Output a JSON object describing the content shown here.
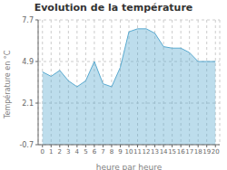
{
  "chart_data": {
    "type": "area",
    "title": "Evolution de la température",
    "xlabel": "heure par heure",
    "ylabel": "Température en °C",
    "x": [
      0,
      1,
      2,
      3,
      4,
      5,
      6,
      7,
      8,
      9,
      10,
      11,
      12,
      13,
      14,
      15,
      16,
      17,
      18,
      19,
      20
    ],
    "values": [
      4.2,
      3.9,
      4.3,
      3.6,
      3.2,
      3.6,
      4.9,
      3.4,
      3.2,
      4.5,
      6.9,
      7.1,
      7.1,
      6.8,
      5.9,
      5.8,
      5.8,
      5.5,
      4.9,
      4.9,
      4.9
    ],
    "color": "#5aaad0",
    "xlim": [
      -0.5,
      20.5
    ],
    "xticks": [
      0,
      1,
      2,
      3,
      4,
      5,
      6,
      7,
      8,
      9,
      10,
      11,
      12,
      13,
      14,
      15,
      16,
      17,
      18,
      19,
      20
    ],
    "ylim": [
      -0.7,
      7.7
    ],
    "yticks": [
      -0.7,
      2.1,
      4.9,
      7.7
    ],
    "grid": true
  }
}
